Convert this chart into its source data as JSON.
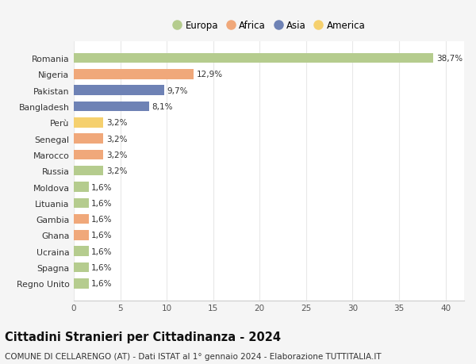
{
  "countries": [
    "Romania",
    "Nigeria",
    "Pakistan",
    "Bangladesh",
    "Perù",
    "Senegal",
    "Marocco",
    "Russia",
    "Moldova",
    "Lituania",
    "Gambia",
    "Ghana",
    "Ucraina",
    "Spagna",
    "Regno Unito"
  ],
  "values": [
    38.7,
    12.9,
    9.7,
    8.1,
    3.2,
    3.2,
    3.2,
    3.2,
    1.6,
    1.6,
    1.6,
    1.6,
    1.6,
    1.6,
    1.6
  ],
  "labels": [
    "38,7%",
    "12,9%",
    "9,7%",
    "8,1%",
    "3,2%",
    "3,2%",
    "3,2%",
    "3,2%",
    "1,6%",
    "1,6%",
    "1,6%",
    "1,6%",
    "1,6%",
    "1,6%",
    "1,6%"
  ],
  "continents": [
    "Europa",
    "Africa",
    "Asia",
    "Asia",
    "America",
    "Africa",
    "Africa",
    "Europa",
    "Europa",
    "Europa",
    "Africa",
    "Africa",
    "Europa",
    "Europa",
    "Europa"
  ],
  "continent_colors": {
    "Europa": "#b5cc8e",
    "Africa": "#f0a87a",
    "Asia": "#6e82b5",
    "America": "#f5d06e"
  },
  "legend_order": [
    "Europa",
    "Africa",
    "Asia",
    "America"
  ],
  "xlim": [
    0,
    42
  ],
  "xticks": [
    0,
    5,
    10,
    15,
    20,
    25,
    30,
    35,
    40
  ],
  "title": "Cittadini Stranieri per Cittadinanza - 2024",
  "subtitle": "COMUNE DI CELLARENGO (AT) - Dati ISTAT al 1° gennaio 2024 - Elaborazione TUTTITALIA.IT",
  "outer_bg_color": "#f5f5f5",
  "plot_bg_color": "#ffffff",
  "bar_height": 0.62,
  "grid_color": "#e8e8e8",
  "label_fontsize": 7.5,
  "ytick_fontsize": 7.8,
  "xtick_fontsize": 7.5,
  "title_fontsize": 10.5,
  "subtitle_fontsize": 7.5,
  "legend_fontsize": 8.5
}
